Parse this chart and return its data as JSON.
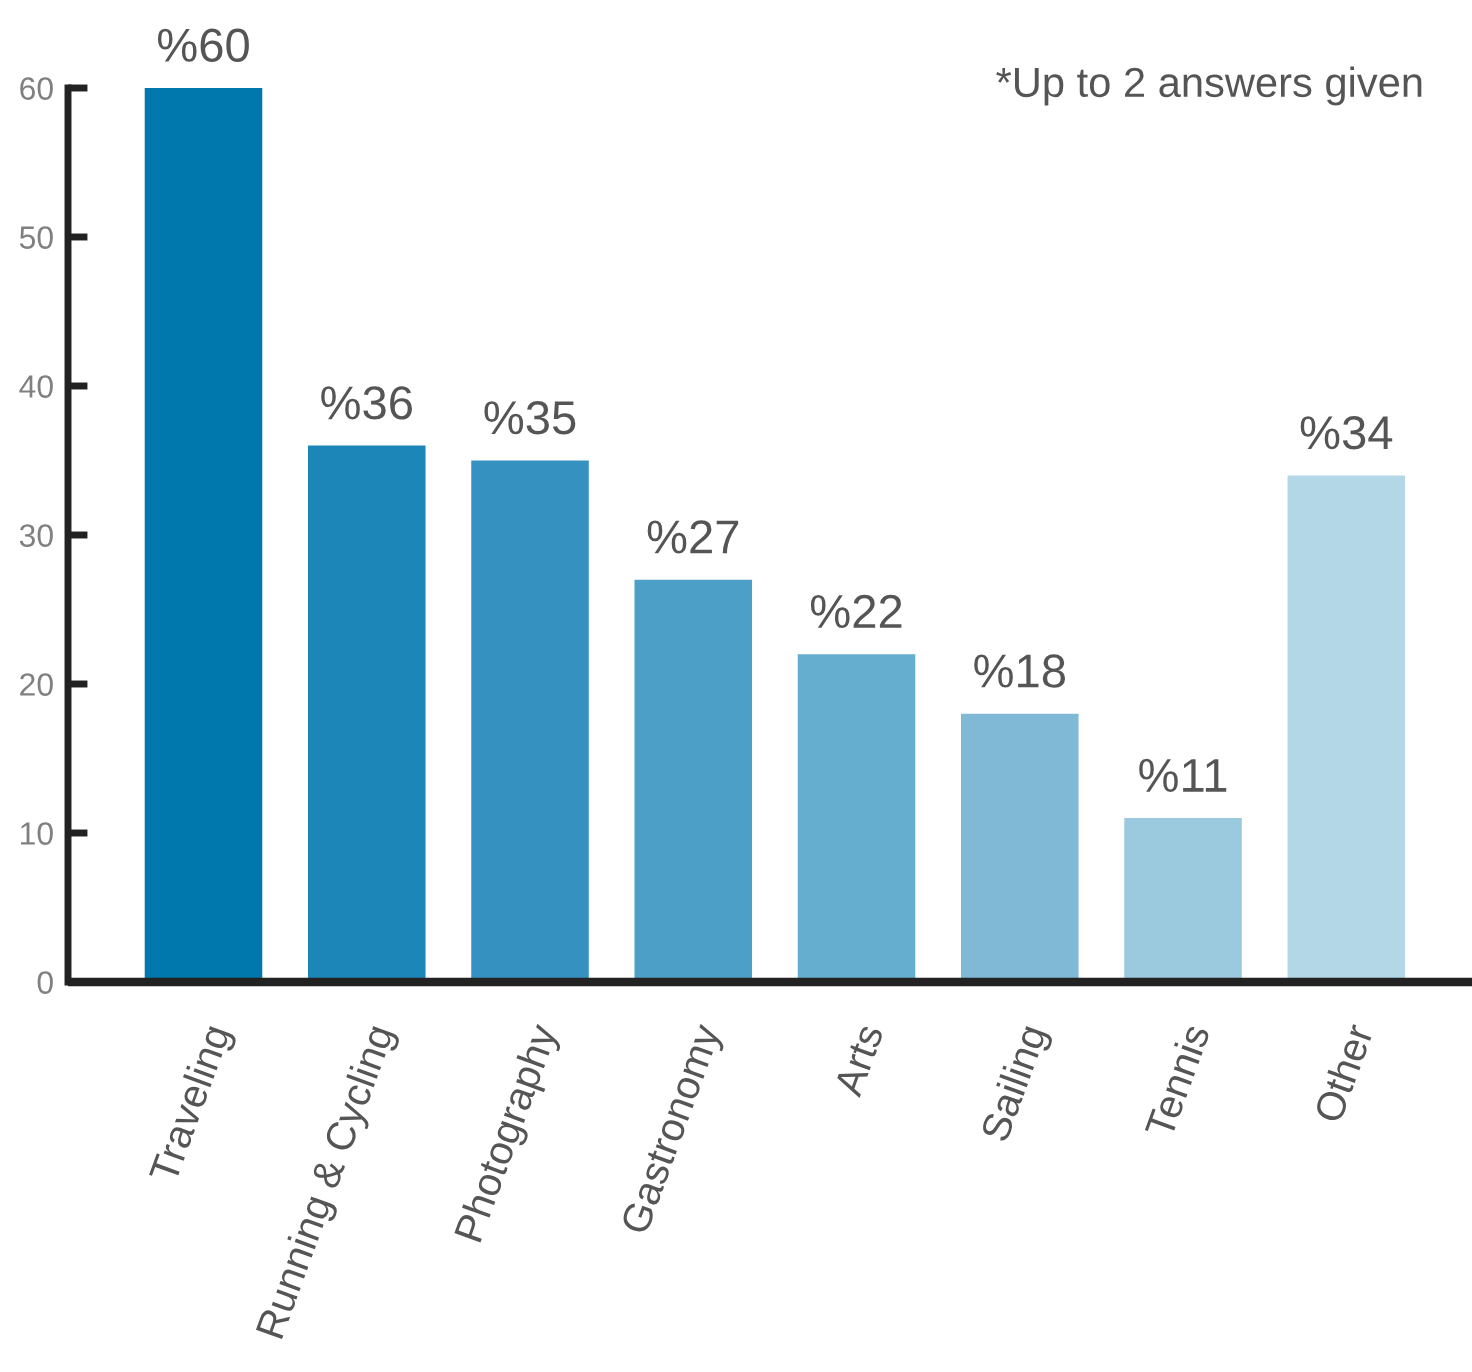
{
  "chart_data": {
    "type": "bar",
    "categories": [
      "Traveling",
      "Running & Cycling",
      "Photography",
      "Gastronomy",
      "Arts",
      "Sailing",
      "Tennis",
      "Other"
    ],
    "values": [
      60,
      36,
      35,
      27,
      22,
      18,
      11,
      34
    ],
    "colors": [
      "#0077ad",
      "#1c86b9",
      "#3592c0",
      "#4ca0c7",
      "#65aed0",
      "#80b9d5",
      "#9bc9dd",
      "#b3d7e6"
    ],
    "value_labels": [
      "%60",
      "%36",
      "%35",
      "%27",
      "%22",
      "%18",
      "%11",
      "%34"
    ],
    "ylim": [
      0,
      60
    ],
    "yticks": [
      0,
      10,
      20,
      30,
      40,
      50,
      60
    ],
    "grid": false,
    "annotations": [
      "*Up to 2 answers given"
    ]
  }
}
